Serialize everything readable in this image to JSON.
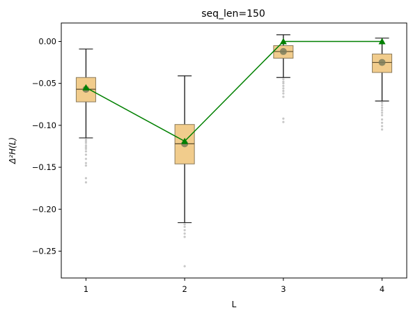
{
  "chart_data": {
    "type": "box",
    "title": "seq_len=150",
    "xlabel": "L",
    "ylabel": "Δ²H(L)",
    "categories": [
      "1",
      "2",
      "3",
      "4"
    ],
    "x_range": [
      0.75,
      4.25
    ],
    "ylim": [
      -0.282,
      0.022
    ],
    "yticks": [
      0.0,
      -0.05,
      -0.1,
      -0.15,
      -0.2,
      -0.25
    ],
    "ytick_labels": [
      "0.00",
      "−0.05",
      "−0.10",
      "−0.15",
      "−0.20",
      "−0.25"
    ],
    "grid": false,
    "boxes": [
      {
        "x": 1,
        "whisker_low": -0.115,
        "q1": -0.072,
        "median": -0.057,
        "q3": -0.043,
        "whisker_high": -0.009,
        "mean": -0.057,
        "outliers": [
          -0.117,
          -0.119,
          -0.121,
          -0.124,
          -0.126,
          -0.128,
          -0.131,
          -0.135,
          -0.14,
          -0.145,
          -0.148,
          -0.163,
          -0.168
        ]
      },
      {
        "x": 2,
        "whisker_low": -0.216,
        "q1": -0.146,
        "median": -0.122,
        "q3": -0.099,
        "whisker_high": -0.041,
        "mean": -0.122,
        "outliers": [
          -0.218,
          -0.221,
          -0.225,
          -0.229,
          -0.233,
          -0.268
        ]
      },
      {
        "x": 3,
        "whisker_low": -0.043,
        "q1": -0.02,
        "median": -0.012,
        "q3": -0.005,
        "whisker_high": 0.008,
        "mean": -0.012,
        "outliers": [
          -0.045,
          -0.048,
          -0.05,
          -0.053,
          -0.056,
          -0.059,
          -0.062,
          -0.066,
          -0.092,
          -0.096
        ]
      },
      {
        "x": 4,
        "whisker_low": -0.071,
        "q1": -0.037,
        "median": -0.025,
        "q3": -0.015,
        "whisker_high": 0.004,
        "mean": -0.025,
        "outliers": [
          -0.073,
          -0.076,
          -0.079,
          -0.082,
          -0.085,
          -0.088,
          -0.093,
          -0.097,
          -0.101,
          -0.105
        ]
      }
    ],
    "line_series": {
      "x": [
        1,
        2,
        3,
        4
      ],
      "values": [
        -0.055,
        -0.119,
        0.0,
        0.0
      ],
      "marker": "triangle"
    },
    "colors": {
      "box_fill": "#f0c77f",
      "box_edge": "#8b7a5a",
      "whisker": "#222222",
      "mean_marker": "#7d7d5c",
      "outlier": "#c8c8c8",
      "line": "#008000"
    }
  }
}
